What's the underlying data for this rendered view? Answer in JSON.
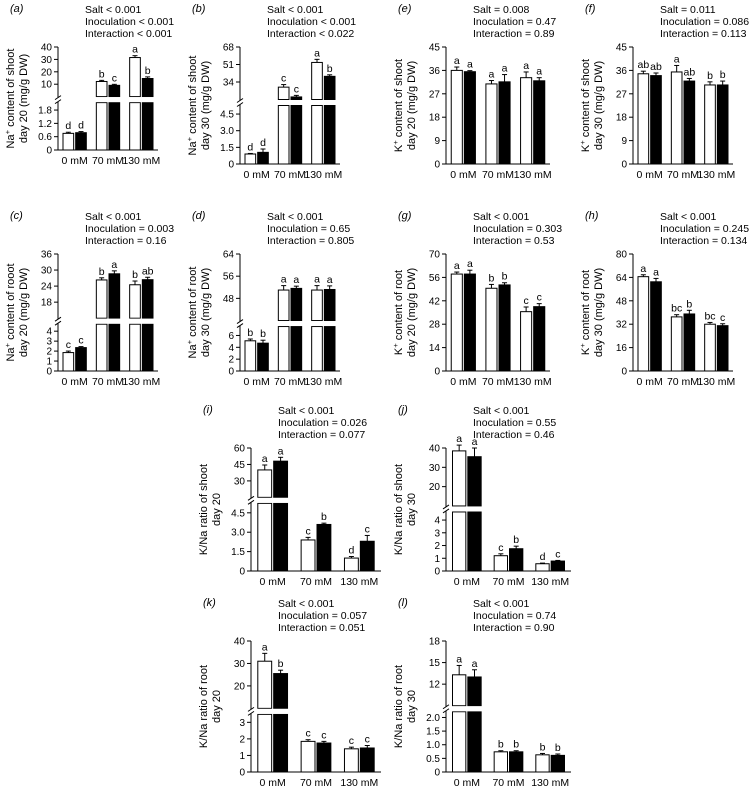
{
  "chart_data": [
    {
      "panel": "(a)",
      "type": "bar",
      "ylabel_lines": [
        "Na+ content of shoot",
        "day 20 (mg/g DW)"
      ],
      "stats": [
        "Salt < 0.001",
        "Inoculation < 0.001",
        "Interaction < 0.001"
      ],
      "categories": [
        "0 mM",
        "70 mM",
        "130 mM"
      ],
      "series": [
        {
          "values": [
            0.75,
            12.2,
            31.5
          ],
          "errors": [
            0.05,
            0.9,
            1.5
          ],
          "letters": [
            "d",
            "b",
            "a"
          ]
        },
        {
          "values": [
            0.78,
            9.1,
            14.6
          ],
          "errors": [
            0.05,
            0.8,
            1.3
          ],
          "letters": [
            "d",
            "c",
            "b"
          ]
        }
      ],
      "lower": {
        "range": [
          0,
          2.0
        ],
        "ticks": [
          0,
          0.6,
          1.2,
          1.8
        ],
        "tick_labels": [
          "0",
          "0.6",
          "1.2",
          "1.8"
        ]
      },
      "upper": {
        "range": [
          0,
          40
        ],
        "ticks": [
          10,
          20,
          30,
          40
        ],
        "tick_labels": [
          "10",
          "20",
          "30",
          "40"
        ]
      }
    },
    {
      "panel": "(b)",
      "type": "bar",
      "ylabel_lines": [
        "Na+ content of shoot",
        "day 30 (mg/g DW)"
      ],
      "stats": [
        "Salt < 0.001",
        "Inoculation < 0.001",
        "Interaction < 0.022"
      ],
      "categories": [
        "0 mM",
        "70 mM",
        "130 mM"
      ],
      "series": [
        {
          "values": [
            0.9,
            29.0,
            53.0
          ],
          "errors": [
            0.05,
            2.5,
            3.0
          ],
          "letters": [
            "d",
            "c",
            "a"
          ]
        },
        {
          "values": [
            1.05,
            19.5,
            39.5
          ],
          "errors": [
            0.3,
            1.5,
            1.5
          ],
          "letters": [
            "d",
            "c",
            "b"
          ]
        }
      ],
      "lower": {
        "range": [
          0,
          5
        ],
        "ticks": [
          0,
          1.5,
          3.0,
          4.5
        ],
        "tick_labels": [
          "0",
          "1.5",
          "3.0",
          "4.5"
        ]
      },
      "upper": {
        "range": [
          17,
          68
        ],
        "ticks": [
          34,
          51,
          68
        ],
        "tick_labels": [
          "34",
          "51",
          "68"
        ]
      }
    },
    {
      "panel": "(e)",
      "type": "bar",
      "ylabel_lines": [
        "K+ content of shoot",
        "day 20 (mg/g DW)"
      ],
      "stats": [
        "Salt = 0.008",
        "Inoculation = 0.47",
        "Interaction = 0.89"
      ],
      "categories": [
        "0 mM",
        "70 mM",
        "130 mM"
      ],
      "series": [
        {
          "values": [
            36.0,
            30.8,
            33.2
          ],
          "errors": [
            1.3,
            1.3,
            2.2
          ],
          "letters": [
            "a",
            "a",
            "a"
          ]
        },
        {
          "values": [
            35.5,
            31.6,
            32.0
          ],
          "errors": [
            0.4,
            2.8,
            1.2
          ],
          "letters": [
            "a",
            "a",
            "a"
          ]
        }
      ],
      "range": [
        0,
        45
      ],
      "ticks": [
        0,
        9,
        18,
        27,
        36,
        45
      ],
      "tick_labels": [
        "0",
        "9",
        "18",
        "27",
        "36",
        "45"
      ]
    },
    {
      "panel": "(f)",
      "type": "bar",
      "ylabel_lines": [
        "K+ content of shoot",
        "day 30 (mg/g DW)"
      ],
      "stats": [
        "Salt = 0.011",
        "Inoculation = 0.086",
        "Interaction = 0.113"
      ],
      "categories": [
        "0 mM",
        "70 mM",
        "130 mM"
      ],
      "series": [
        {
          "values": [
            34.7,
            35.4,
            30.4
          ],
          "errors": [
            1.0,
            2.5,
            1.2
          ],
          "letters": [
            "ab",
            "a",
            "b"
          ]
        },
        {
          "values": [
            34.0,
            31.9,
            30.4
          ],
          "errors": [
            1.0,
            1.0,
            1.5
          ],
          "letters": [
            "ab",
            "ab",
            "b"
          ]
        }
      ],
      "range": [
        0,
        45
      ],
      "ticks": [
        0,
        9,
        18,
        27,
        36,
        45
      ],
      "tick_labels": [
        "0",
        "9",
        "18",
        "27",
        "36",
        "45"
      ]
    },
    {
      "panel": "(c)",
      "type": "bar",
      "ylabel_lines": [
        "Na+ content of rooot",
        "day 20 (mg/g DW)"
      ],
      "stats": [
        "Salt < 0.001",
        "Inoculation = 0.003",
        "Interaction = 0.16"
      ],
      "categories": [
        "0 mM",
        "70 mM",
        "130 mM"
      ],
      "series": [
        {
          "values": [
            1.85,
            26.3,
            24.5
          ],
          "errors": [
            0.15,
            0.8,
            1.4
          ],
          "letters": [
            "c",
            "b",
            "b"
          ]
        },
        {
          "values": [
            2.35,
            28.6,
            26.4
          ],
          "errors": [
            0.1,
            1.1,
            0.9
          ],
          "letters": [
            "c",
            "a",
            "ab"
          ]
        }
      ],
      "lower": {
        "range": [
          0,
          4.4
        ],
        "ticks": [
          0,
          1,
          2,
          3,
          4
        ],
        "tick_labels": [
          "0",
          "1",
          "2",
          "3",
          "4"
        ]
      },
      "upper": {
        "range": [
          12,
          36
        ],
        "ticks": [
          18,
          24,
          30,
          36
        ],
        "tick_labels": [
          "18",
          "24",
          "30",
          "36"
        ]
      }
    },
    {
      "panel": "(d)",
      "type": "bar",
      "ylabel_lines": [
        "Na+ content of root",
        "day 30 (mg/g DW)"
      ],
      "stats": [
        "Salt < 0.001",
        "Inoculation = 0.65",
        "Interaction = 0.805"
      ],
      "categories": [
        "0 mM",
        "70 mM",
        "130 mM"
      ],
      "series": [
        {
          "values": [
            5.1,
            51.0,
            51.0
          ],
          "errors": [
            0.3,
            1.6,
            1.6
          ],
          "letters": [
            "b",
            "a",
            "a"
          ]
        },
        {
          "values": [
            4.7,
            51.6,
            51.2
          ],
          "errors": [
            0.5,
            0.8,
            1.3
          ],
          "letters": [
            "b",
            "a",
            "a"
          ]
        }
      ],
      "lower": {
        "range": [
          0,
          7
        ],
        "ticks": [
          0,
          2,
          4,
          6
        ],
        "tick_labels": [
          "0",
          "2",
          "4",
          "6"
        ]
      },
      "upper": {
        "range": [
          40,
          64
        ],
        "ticks": [
          48,
          56,
          64
        ],
        "tick_labels": [
          "48",
          "56",
          "64"
        ]
      }
    },
    {
      "panel": "(g)",
      "type": "bar",
      "ylabel_lines": [
        "K+ content of root",
        "day 20 (mg/g DW)"
      ],
      "stats": [
        "Salt < 0.001",
        "Inoculation = 0.303",
        "Interaction = 0.53"
      ],
      "categories": [
        "0 mM",
        "70 mM",
        "130 mM"
      ],
      "series": [
        {
          "values": [
            58.0,
            49.5,
            35.5
          ],
          "errors": [
            1.2,
            2.3,
            2.8
          ],
          "letters": [
            "a",
            "b",
            "c"
          ]
        },
        {
          "values": [
            58.0,
            51.5,
            38.5
          ],
          "errors": [
            2.3,
            1.3,
            1.8
          ],
          "letters": [
            "a",
            "b",
            "c"
          ]
        }
      ],
      "range": [
        0,
        70
      ],
      "ticks": [
        0,
        14,
        28,
        42,
        56,
        70
      ],
      "tick_labels": [
        "0",
        "14",
        "28",
        "42",
        "56",
        "70"
      ]
    },
    {
      "panel": "(h)",
      "type": "bar",
      "ylabel_lines": [
        "K+ content of root",
        "day 30 (mg/g DW)"
      ],
      "stats": [
        "Salt < 0.001",
        "Inoculation = 0.245",
        "Interaction = 0.134"
      ],
      "categories": [
        "0 mM",
        "70 mM",
        "130 mM"
      ],
      "series": [
        {
          "values": [
            64.5,
            37.0,
            32.0
          ],
          "errors": [
            1.3,
            1.5,
            1.2
          ],
          "letters": [
            "a",
            "bc",
            "bc"
          ]
        },
        {
          "values": [
            61.0,
            39.0,
            31.0
          ],
          "errors": [
            2.3,
            2.5,
            1.3
          ],
          "letters": [
            "a",
            "b",
            "c"
          ]
        }
      ],
      "range": [
        0,
        80
      ],
      "ticks": [
        0,
        16,
        32,
        48,
        64,
        80
      ],
      "tick_labels": [
        "0",
        "16",
        "32",
        "48",
        "64",
        "80"
      ]
    },
    {
      "panel": "(i)",
      "type": "bar",
      "ylabel_lines": [
        "K/Na ratio of shoot",
        "day 20"
      ],
      "stats": [
        "Salt < 0.001",
        "Inoculation = 0.026",
        "Interaction = 0.077"
      ],
      "categories": [
        "0 mM",
        "70 mM",
        "130 mM"
      ],
      "series": [
        {
          "values": [
            40.0,
            2.4,
            1.0
          ],
          "errors": [
            4.5,
            0.2,
            0.12
          ],
          "letters": [
            "a",
            "c",
            "d"
          ]
        },
        {
          "values": [
            48.0,
            3.6,
            2.3
          ],
          "errors": [
            3.5,
            0.1,
            0.45
          ],
          "letters": [
            "a",
            "b",
            "c"
          ]
        }
      ],
      "lower": {
        "range": [
          0,
          5.0
        ],
        "ticks": [
          0,
          1.5,
          3.0,
          4.5
        ],
        "tick_labels": [
          "0",
          "1.5",
          "3.0",
          "4.5"
        ]
      },
      "upper": {
        "range": [
          15,
          60
        ],
        "ticks": [
          30,
          45,
          60
        ],
        "tick_labels": [
          "30",
          "45",
          "60"
        ]
      }
    },
    {
      "panel": "(j)",
      "type": "bar",
      "ylabel_lines": [
        "K/Na ratio of shoot",
        "day 30"
      ],
      "stats": [
        "Salt < 0.001",
        "Inoculation = 0.55",
        "Interaction = 0.46"
      ],
      "categories": [
        "0 mM",
        "70 mM",
        "130 mM"
      ],
      "series": [
        {
          "values": [
            38.5,
            1.2,
            0.57
          ],
          "errors": [
            3.0,
            0.15,
            0.05
          ],
          "letters": [
            "a",
            "c",
            "d"
          ]
        },
        {
          "values": [
            35.5,
            1.75,
            0.78
          ],
          "errors": [
            4.5,
            0.2,
            0.05
          ],
          "letters": [
            "a",
            "b",
            "c"
          ]
        }
      ],
      "lower": {
        "range": [
          0,
          4.4
        ],
        "ticks": [
          0,
          1,
          2,
          3,
          4
        ],
        "tick_labels": [
          "0",
          "1",
          "2",
          "3",
          "4"
        ]
      },
      "upper": {
        "range": [
          10,
          40
        ],
        "ticks": [
          20,
          30,
          40
        ],
        "tick_labels": [
          "20",
          "30",
          "40"
        ]
      }
    },
    {
      "panel": "(k)",
      "type": "bar",
      "ylabel_lines": [
        "K/Na ratio of root",
        "day 20"
      ],
      "stats": [
        "Salt < 0.001",
        "Inoculation = 0.057",
        "Interaction = 0.051"
      ],
      "categories": [
        "0 mM",
        "70 mM",
        "130 mM"
      ],
      "series": [
        {
          "values": [
            31.0,
            1.85,
            1.4
          ],
          "errors": [
            3.5,
            0.1,
            0.1
          ],
          "letters": [
            "a",
            "c",
            "c"
          ]
        },
        {
          "values": [
            25.5,
            1.75,
            1.45
          ],
          "errors": [
            1.5,
            0.1,
            0.15
          ],
          "letters": [
            "b",
            "c",
            "c"
          ]
        }
      ],
      "lower": {
        "range": [
          0,
          3.3
        ],
        "ticks": [
          0,
          1,
          2,
          3
        ],
        "tick_labels": [
          "0",
          "1",
          "2",
          "3"
        ]
      },
      "upper": {
        "range": [
          10,
          40
        ],
        "ticks": [
          20,
          30,
          40
        ],
        "tick_labels": [
          "20",
          "30",
          "40"
        ]
      }
    },
    {
      "panel": "(l)",
      "type": "bar",
      "ylabel_lines": [
        "K/Na ratio of root",
        "day 30"
      ],
      "stats": [
        "Salt < 0.001",
        "Inoculation = 0.74",
        "Interaction = 0.90"
      ],
      "categories": [
        "0 mM",
        "70 mM",
        "130 mM"
      ],
      "series": [
        {
          "values": [
            13.3,
            0.74,
            0.63
          ],
          "errors": [
            1.3,
            0.04,
            0.05
          ],
          "letters": [
            "a",
            "b",
            "b"
          ]
        },
        {
          "values": [
            13.0,
            0.74,
            0.61
          ],
          "errors": [
            1.0,
            0.04,
            0.05
          ],
          "letters": [
            "a",
            "b",
            "b"
          ]
        }
      ],
      "lower": {
        "range": [
          0,
          2.1
        ],
        "ticks": [
          0,
          0.5,
          1.0,
          1.5,
          2.0
        ],
        "tick_labels": [
          "0",
          "0.5",
          "1.0",
          "1.5",
          "2.0"
        ]
      },
      "upper": {
        "range": [
          9,
          18
        ],
        "ticks": [
          12,
          15,
          18
        ],
        "tick_labels": [
          "12",
          "15",
          "18"
        ]
      }
    }
  ],
  "legend_note": "open bars = uninoculated, filled bars = inoculated (no legend printed)"
}
